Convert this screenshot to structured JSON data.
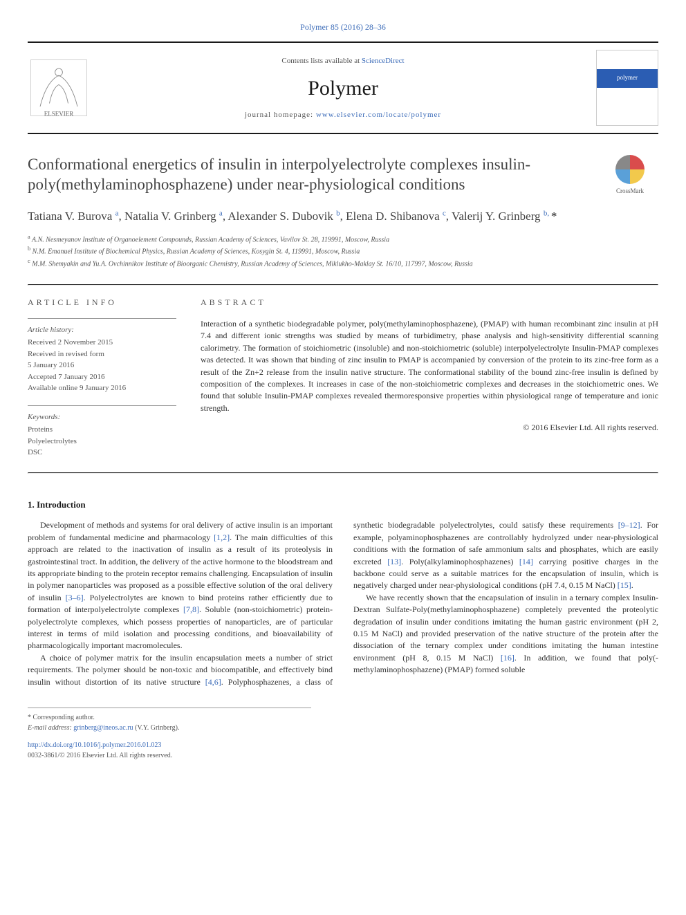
{
  "journal_ref": "Polymer 85 (2016) 28–36",
  "header": {
    "contents_prefix": "Contents lists available at ",
    "contents_link": "ScienceDirect",
    "journal_name": "Polymer",
    "homepage_prefix": "journal homepage: ",
    "homepage_link": "www.elsevier.com/locate/polymer",
    "publisher_name": "ELSEVIER",
    "cover_label": "polymer"
  },
  "title": "Conformational energetics of insulin in interpolyelectrolyte complexes insulin-poly(methylaminophosphazene) under near-physiological conditions",
  "crossmark_label": "CrossMark",
  "authors_html": "Tatiana V. Burova <sup>a</sup>, Natalia V. Grinberg <sup>a</sup>, Alexander S. Dubovik <sup>b</sup>, Elena D. Shibanova <sup>c</sup>, Valerij Y. Grinberg <sup>b, </sup><span class='ast'>*</span>",
  "affiliations": {
    "a": "A.N. Nesmeyanov Institute of Organoelement Compounds, Russian Academy of Sciences, Vavilov St. 28, 119991, Moscow, Russia",
    "b": "N.M. Emanuel Institute of Biochemical Physics, Russian Academy of Sciences, Kosygin St. 4, 119991, Moscow, Russia",
    "c": "M.M. Shemyakin and Yu.A. Ovchinnikov Institute of Bioorganic Chemistry, Russian Academy of Sciences, Miklukho-Maklay St. 16/10, 117997, Moscow, Russia"
  },
  "article_info": {
    "label": "ARTICLE INFO",
    "history_title": "Article history:",
    "history": [
      "Received 2 November 2015",
      "Received in revised form",
      "5 January 2016",
      "Accepted 7 January 2016",
      "Available online 9 January 2016"
    ],
    "keywords_title": "Keywords:",
    "keywords": [
      "Proteins",
      "Polyelectrolytes",
      "DSC"
    ]
  },
  "abstract": {
    "label": "ABSTRACT",
    "text": "Interaction of a synthetic biodegradable polymer, poly(methylaminophosphazene), (PMAP) with human recombinant zinc insulin at pH 7.4 and different ionic strengths was studied by means of turbidimetry, phase analysis and high-sensitivity differential scanning calorimetry. The formation of stoichiometric (insoluble) and non-stoichiometric (soluble) interpolyelectrolyte Insulin-PMAP complexes was detected. It was shown that binding of zinc insulin to PMAP is accompanied by conversion of the protein to its zinc-free form as a result of the Zn+2 release from the insulin native structure. The conformational stability of the bound zinc-free insulin is defined by composition of the complexes. It increases in case of the non-stoichiometric complexes and decreases in the stoichiometric ones. We found that soluble Insulin-PMAP complexes revealed thermoresponsive properties within physiological range of temperature and ionic strength.",
    "copyright": "© 2016 Elsevier Ltd. All rights reserved."
  },
  "body": {
    "heading": "1. Introduction",
    "p1": "Development of methods and systems for oral delivery of active insulin is an important problem of fundamental medicine and pharmacology <span class='cite'>[1,2]</span>. The main difficulties of this approach are related to the inactivation of insulin as a result of its proteolysis in gastrointestinal tract. In addition, the delivery of the active hormone to the bloodstream and its appropriate binding to the protein receptor remains challenging. Encapsulation of insulin in polymer nanoparticles was proposed as a possible effective solution of the oral delivery of insulin <span class='cite'>[3–6]</span>. Polyelectrolytes are known to bind proteins rather efficiently due to formation of interpolyelectrolyte complexes <span class='cite'>[7,8]</span>. Soluble (non-stoichiometric) protein-polyelectrolyte complexes, which possess properties of nanoparticles, are of particular interest in terms of mild isolation and processing conditions, and bioavailability of pharmacologically important macromolecules.",
    "p2": "A choice of polymer matrix for the insulin encapsulation meets a number of strict requirements. The polymer should be non-toxic and biocompatible, and effectively bind insulin without distortion of its native structure <span class='cite'>[4,6]</span>. Polyphosphazenes, a class of synthetic biodegradable polyelectrolytes, could satisfy these requirements <span class='cite'>[9–12]</span>. For example, polyaminophosphazenes are controllably hydrolyzed under near-physiological conditions with the formation of safe ammonium salts and phosphates, which are easily excreted <span class='cite'>[13]</span>. Poly(alkylaminophosphazenes) <span class='cite'>[14]</span> carrying positive charges in the backbone could serve as a suitable matrices for the encapsulation of insulin, which is negatively charged under near-physiological conditions (pH 7.4, 0.15 M NaCl) <span class='cite'>[15]</span>.",
    "p3": "We have recently shown that the encapsulation of insulin in a ternary complex Insulin-Dextran Sulfate-Poly(methylaminophosphazene) completely prevented the proteolytic degradation of insulin under conditions imitating the human gastric environment (pH 2, 0.15 M NaCl) and provided preservation of the native structure of the protein after the dissociation of the ternary complex under conditions imitating the human intestine environment (pH 8, 0.15 M NaCl) <span class='cite'>[16]</span>. In addition, we found that poly(-methylaminophosphazene) (PMAP) formed soluble"
  },
  "footnote": {
    "corr": "* Corresponding author.",
    "email_label": "E-mail address: ",
    "email": "grinberg@ineos.ac.ru",
    "email_suffix": " (V.Y. Grinberg)."
  },
  "doi": {
    "link": "http://dx.doi.org/10.1016/j.polymer.2016.01.023",
    "issn": "0032-3861/© 2016 Elsevier Ltd. All rights reserved."
  },
  "colors": {
    "link": "#3b6bb8",
    "text": "#1a1a1a",
    "muted": "#555555",
    "rule": "#1a1a1a",
    "subrule": "#999999"
  }
}
